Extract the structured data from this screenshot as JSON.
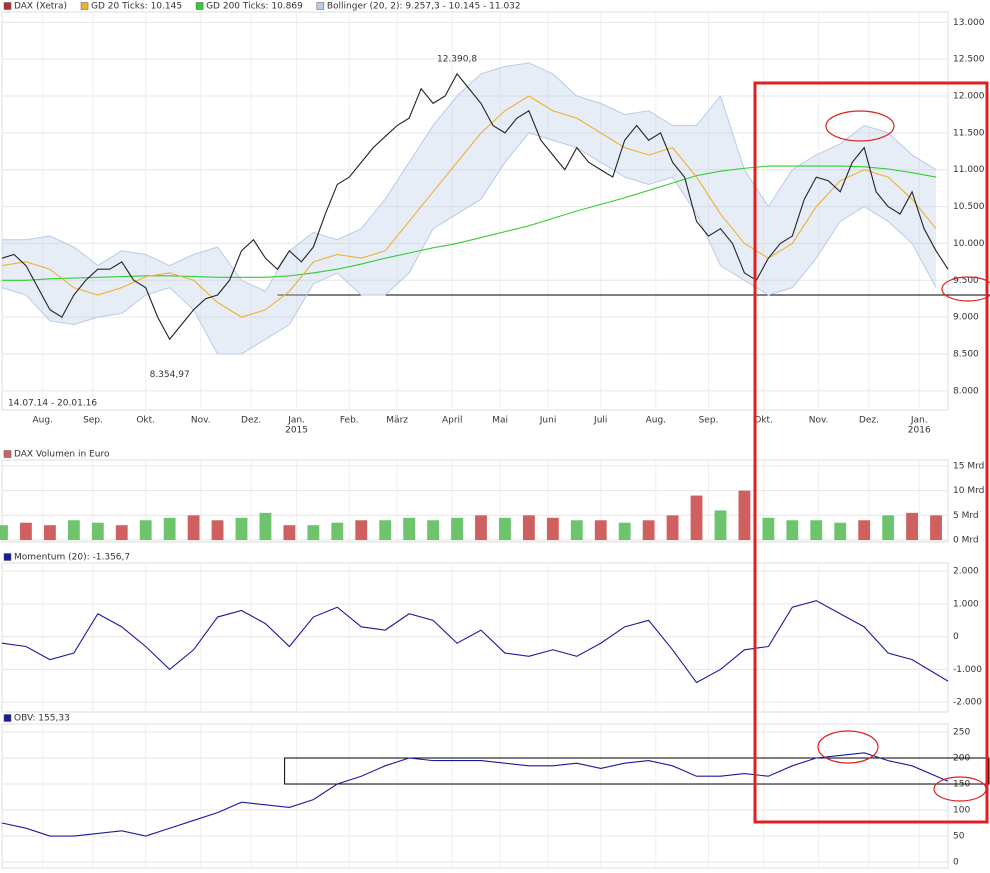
{
  "chart_data": [
    {
      "type": "line",
      "date_range": "14.07.14 - 20.01.16",
      "xlim": [
        0,
        395
      ],
      "ylim": [
        7740,
        13140
      ],
      "xticks": [
        {
          "value": 17,
          "label": "Aug."
        },
        {
          "value": 38,
          "label": "Sep."
        },
        {
          "value": 60,
          "label": "Okt."
        },
        {
          "value": 83,
          "label": "Nov."
        },
        {
          "value": 104,
          "label": "Dez."
        },
        {
          "value": 123,
          "label": "Jan."
        },
        {
          "value": 145,
          "label": "Feb."
        },
        {
          "value": 165,
          "label": "März"
        },
        {
          "value": 188,
          "label": "April"
        },
        {
          "value": 208,
          "label": "Mai"
        },
        {
          "value": 228,
          "label": "Juni"
        },
        {
          "value": 250,
          "label": "Juli"
        },
        {
          "value": 273,
          "label": "Aug."
        },
        {
          "value": 295,
          "label": "Sep."
        },
        {
          "value": 318,
          "label": "Okt."
        },
        {
          "value": 341,
          "label": "Nov."
        },
        {
          "value": 362,
          "label": "Dez."
        },
        {
          "value": 383,
          "label": "Jan."
        }
      ],
      "year_labels": [
        {
          "value": 123,
          "label": "2015"
        },
        {
          "value": 383,
          "label": "2016"
        }
      ],
      "yticks": [
        {
          "value": 8000,
          "label": "8.000"
        },
        {
          "value": 8500,
          "label": "8.500"
        },
        {
          "value": 9000,
          "label": "9.000"
        },
        {
          "value": 9500,
          "label": "9.500"
        },
        {
          "value": 10000,
          "label": "10.000"
        },
        {
          "value": 10500,
          "label": "10.500"
        },
        {
          "value": 11000,
          "label": "11.000"
        },
        {
          "value": 11500,
          "label": "11.500"
        },
        {
          "value": 12000,
          "label": "12.000"
        },
        {
          "value": 12500,
          "label": "12.500"
        },
        {
          "value": 13000,
          "label": "13.000"
        }
      ],
      "grid": true,
      "annotations": [
        {
          "text": "12.390,8",
          "x": 190,
          "y": 12390.8
        },
        {
          "text": "8.354,97",
          "x": 70,
          "y": 8354.97
        }
      ],
      "support_line": {
        "value": 9300,
        "from": 115
      },
      "series": [
        {
          "name": "Bollinger (20, 2): 9.257,3 - 10.145 - 11.032",
          "color": "#b8cbe8",
          "x": [
            0,
            10,
            20,
            30,
            40,
            50,
            60,
            70,
            80,
            90,
            100,
            110,
            120,
            130,
            140,
            150,
            160,
            170,
            180,
            190,
            200,
            210,
            220,
            230,
            240,
            250,
            260,
            270,
            280,
            290,
            300,
            310,
            320,
            330,
            340,
            350,
            360,
            370,
            380,
            390
          ],
          "upper": [
            10050,
            10050,
            10100,
            9950,
            9700,
            9900,
            9850,
            9700,
            9850,
            9950,
            9500,
            9350,
            9900,
            10150,
            10050,
            10200,
            10600,
            11100,
            11600,
            12000,
            12300,
            12400,
            12450,
            12300,
            12000,
            11900,
            11750,
            11800,
            11600,
            11600,
            12000,
            11000,
            10500,
            11000,
            11200,
            11350,
            11600,
            11500,
            11200,
            11000
          ],
          "lower": [
            9400,
            9300,
            8950,
            8900,
            9000,
            9050,
            9300,
            9400,
            9100,
            8500,
            8500,
            8700,
            8900,
            9450,
            9600,
            9300,
            9300,
            9600,
            10200,
            10400,
            10600,
            11100,
            11500,
            11400,
            11300,
            11100,
            10900,
            10800,
            10900,
            10400,
            9700,
            9500,
            9300,
            9400,
            9800,
            10300,
            10500,
            10300,
            10000,
            9400
          ]
        },
        {
          "name": "GD 200 Ticks: 10.869",
          "color": "#33cc33",
          "x": [
            0,
            10,
            20,
            30,
            40,
            50,
            60,
            70,
            80,
            90,
            100,
            110,
            120,
            130,
            140,
            150,
            160,
            170,
            180,
            190,
            200,
            210,
            220,
            230,
            240,
            250,
            260,
            270,
            280,
            290,
            300,
            310,
            320,
            330,
            340,
            350,
            360,
            370,
            380,
            390
          ],
          "values": [
            9500,
            9500,
            9520,
            9530,
            9540,
            9550,
            9560,
            9560,
            9550,
            9540,
            9540,
            9540,
            9560,
            9600,
            9650,
            9720,
            9800,
            9870,
            9940,
            10000,
            10080,
            10160,
            10240,
            10340,
            10440,
            10530,
            10620,
            10720,
            10820,
            10920,
            10980,
            11020,
            11050,
            11050,
            11050,
            11050,
            11040,
            11010,
            10960,
            10900
          ]
        },
        {
          "name": "GD 20 Ticks: 10.145",
          "color": "#f0b030",
          "x": [
            0,
            10,
            20,
            30,
            40,
            50,
            60,
            70,
            80,
            90,
            100,
            110,
            120,
            130,
            140,
            150,
            160,
            170,
            180,
            190,
            200,
            210,
            220,
            230,
            240,
            250,
            260,
            270,
            280,
            290,
            300,
            310,
            320,
            330,
            340,
            350,
            360,
            370,
            380,
            390
          ],
          "values": [
            9700,
            9750,
            9650,
            9400,
            9300,
            9400,
            9550,
            9600,
            9500,
            9200,
            9000,
            9100,
            9350,
            9750,
            9850,
            9800,
            9900,
            10300,
            10700,
            11100,
            11500,
            11800,
            12000,
            11800,
            11700,
            11500,
            11300,
            11200,
            11300,
            10900,
            10400,
            10000,
            9800,
            10000,
            10500,
            10850,
            11000,
            10900,
            10600,
            10200
          ]
        },
        {
          "name": "DAX (Xetra)",
          "color": "#b03030",
          "line_color": "#222222",
          "x": [
            0,
            5,
            10,
            15,
            20,
            25,
            30,
            35,
            40,
            45,
            50,
            55,
            60,
            65,
            70,
            75,
            80,
            85,
            90,
            95,
            100,
            105,
            110,
            115,
            120,
            125,
            130,
            135,
            140,
            145,
            150,
            155,
            160,
            165,
            170,
            175,
            180,
            185,
            190,
            195,
            200,
            205,
            210,
            215,
            220,
            225,
            230,
            235,
            240,
            245,
            250,
            255,
            260,
            265,
            270,
            275,
            280,
            285,
            290,
            295,
            300,
            305,
            310,
            315,
            320,
            325,
            330,
            335,
            340,
            345,
            350,
            355,
            360,
            365,
            370,
            375,
            380,
            385,
            390,
            395
          ],
          "values": [
            9800,
            9850,
            9700,
            9400,
            9100,
            9000,
            9300,
            9500,
            9650,
            9650,
            9750,
            9500,
            9400,
            9000,
            8700,
            8900,
            9100,
            9250,
            9300,
            9500,
            9900,
            10050,
            9800,
            9650,
            9900,
            9750,
            9950,
            10400,
            10800,
            10900,
            11100,
            11300,
            11450,
            11600,
            11700,
            12100,
            11900,
            12000,
            12300,
            12100,
            11900,
            11600,
            11500,
            11700,
            11800,
            11400,
            11200,
            11000,
            11300,
            11100,
            11000,
            10900,
            11400,
            11600,
            11400,
            11500,
            11100,
            10900,
            10300,
            10100,
            10200,
            10000,
            9600,
            9500,
            9800,
            10000,
            10100,
            10600,
            10900,
            10850,
            10700,
            11100,
            11300,
            10700,
            10500,
            10400,
            10700,
            10200,
            9900,
            9650
          ]
        }
      ]
    },
    {
      "type": "bar",
      "xlim": [
        0,
        395
      ],
      "ylim": [
        -0.4,
        16.2
      ],
      "yticks": [
        {
          "value": 0,
          "label": "0 Mrd"
        },
        {
          "value": 5,
          "label": "5 Mrd"
        },
        {
          "value": 10,
          "label": "10 Mrd"
        },
        {
          "value": 15,
          "label": "15 Mrd"
        }
      ],
      "series": [
        {
          "name": "DAX Volumen in Euro",
          "color": "#d06060",
          "x": [
            0,
            10,
            20,
            30,
            40,
            50,
            60,
            70,
            80,
            90,
            100,
            110,
            120,
            130,
            140,
            150,
            160,
            170,
            180,
            190,
            200,
            210,
            220,
            230,
            240,
            250,
            260,
            270,
            280,
            290,
            300,
            310,
            320,
            330,
            340,
            350,
            360,
            370,
            380,
            390
          ],
          "values": [
            3,
            3.5,
            3,
            4,
            3.5,
            3,
            4,
            4.5,
            5,
            4,
            4.5,
            5.5,
            3,
            3,
            3.5,
            4,
            4,
            4.5,
            4,
            4.5,
            5,
            4.5,
            5,
            4.5,
            4,
            4,
            3.5,
            4,
            5,
            9,
            6,
            10,
            4.5,
            4,
            4,
            3.5,
            4,
            5,
            5.5,
            5
          ],
          "bar_colors": [
            "#6cc46c",
            "#d06060",
            "#d06060",
            "#6cc46c",
            "#6cc46c",
            "#d06060",
            "#6cc46c",
            "#6cc46c",
            "#d06060",
            "#d06060",
            "#6cc46c",
            "#6cc46c",
            "#d06060",
            "#6cc46c",
            "#6cc46c",
            "#d06060",
            "#6cc46c",
            "#6cc46c",
            "#6cc46c",
            "#6cc46c",
            "#d06060",
            "#6cc46c",
            "#d06060",
            "#d06060",
            "#6cc46c",
            "#d06060",
            "#6cc46c",
            "#d06060",
            "#d06060",
            "#d06060",
            "#6cc46c",
            "#d06060",
            "#6cc46c",
            "#6cc46c",
            "#6cc46c",
            "#6cc46c",
            "#d06060",
            "#6cc46c",
            "#d06060",
            "#d06060"
          ]
        }
      ]
    },
    {
      "type": "line",
      "xlim": [
        0,
        395
      ],
      "ylim": [
        -2300,
        2250
      ],
      "yticks": [
        {
          "value": -2000,
          "label": "-2.000"
        },
        {
          "value": -1000,
          "label": "-1.000"
        },
        0,
        {
          "value": 1000,
          "label": "1.000"
        },
        {
          "value": 2000,
          "label": "2.000"
        }
      ],
      "series": [
        {
          "name": "Momentum (20): -1.356,7",
          "color": "#1a1aa0",
          "x": [
            0,
            10,
            20,
            30,
            40,
            50,
            60,
            70,
            80,
            90,
            100,
            110,
            120,
            130,
            140,
            150,
            160,
            170,
            180,
            190,
            200,
            210,
            220,
            230,
            240,
            250,
            260,
            270,
            280,
            290,
            300,
            310,
            320,
            330,
            340,
            350,
            360,
            370,
            380,
            395
          ],
          "values": [
            -200,
            -300,
            -700,
            -500,
            700,
            300,
            -300,
            -1000,
            -400,
            600,
            800,
            400,
            -300,
            600,
            900,
            300,
            200,
            700,
            500,
            -200,
            200,
            -500,
            -600,
            -400,
            -600,
            -200,
            300,
            500,
            -400,
            -1400,
            -1000,
            -400,
            -300,
            900,
            1100,
            700,
            300,
            -500,
            -700,
            -1356.7
          ]
        }
      ]
    },
    {
      "type": "line",
      "xlim": [
        0,
        395
      ],
      "ylim": [
        -11.5,
        265.4
      ],
      "yticks": [
        0,
        50,
        100,
        150,
        200,
        250
      ],
      "box": {
        "from": 118,
        "range": [
          150,
          200
        ]
      },
      "series": [
        {
          "name": "OBV: 155,33",
          "color": "#1a1aa0",
          "x": [
            0,
            10,
            20,
            30,
            40,
            50,
            60,
            70,
            80,
            90,
            100,
            110,
            120,
            130,
            140,
            150,
            160,
            170,
            180,
            190,
            200,
            210,
            220,
            230,
            240,
            250,
            260,
            270,
            280,
            290,
            300,
            310,
            320,
            330,
            340,
            350,
            360,
            370,
            380,
            395
          ],
          "values": [
            75,
            65,
            50,
            50,
            55,
            60,
            50,
            65,
            80,
            95,
            115,
            110,
            105,
            120,
            150,
            165,
            185,
            200,
            195,
            195,
            195,
            190,
            185,
            185,
            190,
            180,
            190,
            195,
            185,
            165,
            165,
            170,
            165,
            185,
            200,
            205,
            210,
            195,
            185,
            155.33
          ]
        }
      ]
    }
  ]
}
